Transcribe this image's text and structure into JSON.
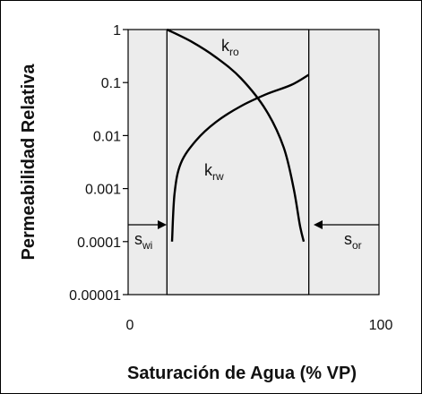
{
  "chart_data": {
    "type": "line",
    "xlabel": "Saturación de Agua (% VP)",
    "ylabel": "Permeabilidad Relativa",
    "xlim": [
      0,
      100
    ],
    "ylim": [
      1e-05,
      1
    ],
    "y_scale": "log",
    "x_ticks": [
      "0",
      "100"
    ],
    "y_ticks": [
      "1",
      "0.1",
      "0.01",
      "0.001",
      "0.0001",
      "0.00001"
    ],
    "grid": false,
    "series": [
      {
        "name": "kro",
        "label_main": "k",
        "label_sub": "ro",
        "x": [
          15.5,
          25,
          35,
          45,
          55,
          62,
          66,
          68.5,
          70
        ],
        "y": [
          1,
          0.6,
          0.3,
          0.12,
          0.03,
          0.006,
          0.001,
          0.0002,
          0.0001
        ]
      },
      {
        "name": "krw",
        "label_main": "k",
        "label_sub": "rw",
        "x": [
          17.5,
          18.5,
          21,
          27,
          35,
          45,
          55,
          65,
          72
        ],
        "y": [
          0.0001,
          0.0008,
          0.003,
          0.008,
          0.018,
          0.036,
          0.06,
          0.09,
          0.14
        ]
      }
    ],
    "annotations": [
      {
        "name": "swi",
        "main": "s",
        "sub": "wi",
        "x": 15.5
      },
      {
        "name": "sor",
        "main": "s",
        "sub": "or",
        "x": 72
      }
    ],
    "colors": {
      "plot_background": "#ececec",
      "line": "#000000"
    }
  }
}
